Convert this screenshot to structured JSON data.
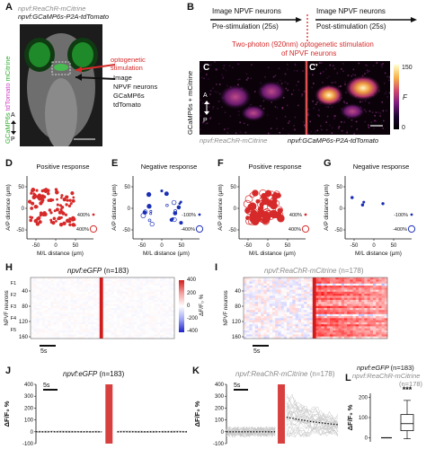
{
  "panels": {
    "A": {
      "label": "A",
      "line1": "npvf:ReaChR-mCitrine",
      "line2": "npvf:GCaMP6s-P2A-tdTomato",
      "vertical": [
        "GCaMP6s",
        "tdTomato",
        "mCitrine"
      ],
      "annotation_red": "optogenetic stimulation",
      "annotation_black": [
        "Image",
        "NPVF neurons",
        "GCaMP6s",
        "tdTomato"
      ],
      "axis_a": "A",
      "axis_p": "P"
    },
    "B": {
      "label": "B",
      "pre_title": "Image NPVF neurons",
      "pre_sub": "Pre-stimulation (25s)",
      "post_title": "Image NPVF neurons",
      "post_sub": "Post-stimulation (25s)",
      "stim_line1": "Two-photon (920nm) optogenetic stimulation",
      "stim_line2": "of NPVF neurons"
    },
    "C": {
      "label": "C",
      "label2": "C'",
      "ylabel": "GCaMP6s + mCitrine",
      "bottom_left": "npvf:ReaChR-mCitrine",
      "bottom_right": "npvf:GCaMP6s-P2A-tdTomato",
      "cb_max": "150",
      "cb_min": "0",
      "cb_label": "F",
      "axis_a": "A",
      "axis_p": "P"
    }
  },
  "scatter_panels": [
    {
      "label": "D",
      "title": "Positive response",
      "color": "#d62a2a",
      "lg1": "400%",
      "lg2": "400%",
      "mode": "pos_small"
    },
    {
      "label": "E",
      "title": "Negative response",
      "color": "#1a2fb5",
      "lg1": "-100%",
      "lg2": "-400%",
      "mode": "neg_small"
    },
    {
      "label": "F",
      "title": "Positive response",
      "color": "#d62a2a",
      "lg1": "400%",
      "lg2": "400%",
      "mode": "pos_big"
    },
    {
      "label": "G",
      "title": "Negative response",
      "color": "#1a2fb5",
      "lg1": "-100%",
      "lg2": "-400%",
      "mode": "neg_few"
    }
  ],
  "scatter_axes": {
    "ylabel": "A/P distance (μm)",
    "xlabel": "M/L distance (μm)",
    "xticks": [
      "-50",
      "0",
      "50"
    ],
    "yticks": [
      "-50",
      "0",
      "50"
    ]
  },
  "heatmaps": {
    "H": {
      "label": "H",
      "title": "npvf:eGFP",
      "n": "(n=183)",
      "rows": [
        "F1",
        "F2",
        "F3",
        "F4",
        "F5"
      ],
      "yticks": [
        "40",
        "80",
        "120",
        "160"
      ],
      "ylabel": "NPVF neurons",
      "scale": "5s"
    },
    "I": {
      "label": "I",
      "title": "npvf:ReaChR-mCitrine",
      "n": "(n=178)",
      "yticks": [
        "40",
        "80",
        "120",
        "160"
      ],
      "ylabel": "NPVF neurons",
      "scale": "5s"
    },
    "colorbar": {
      "ticks": [
        "400",
        "200",
        "0",
        "-200",
        "-400"
      ],
      "label": "ΔF/F₀ %"
    }
  },
  "traces": {
    "J": {
      "label": "J",
      "title": "npvf:eGFP",
      "n": "(n=183)",
      "scale": "5s",
      "yticks": [
        "400",
        "300",
        "200",
        "100",
        "0",
        "-100"
      ],
      "ylabel": "ΔF/F₀ %"
    },
    "K": {
      "label": "K",
      "title": "npvf:ReaChR-mCitrine",
      "n": "(n=178)",
      "scale": "5s",
      "yticks": [
        "400",
        "300",
        "200",
        "100",
        "0",
        "-100"
      ],
      "ylabel": "ΔF/F₀ %"
    }
  },
  "boxplot": {
    "label": "L",
    "title1": "npvf:eGFP",
    "n1": "(n=183)",
    "title2": "npvf:ReaChR-mCitrine",
    "n2": "(n=178)",
    "stars": "***",
    "ylabel": "ΔF/F₀ %",
    "yticks": [
      "200",
      "100",
      "0"
    ]
  }
}
